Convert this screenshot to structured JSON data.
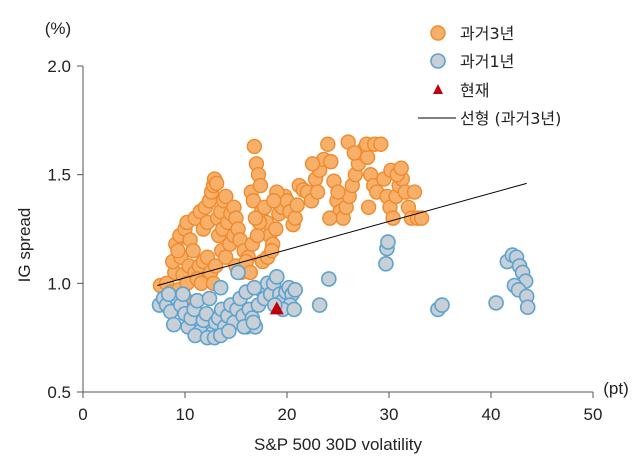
{
  "chart_data": {
    "type": "scatter",
    "xlabel": "S&P 500 30D volatility",
    "ylabel": "IG spread",
    "xunit": "(pt)",
    "yunit": "(%)",
    "xlim": [
      0,
      50
    ],
    "ylim": [
      0.5,
      2.0
    ],
    "xticks": [
      "0",
      "10",
      "20",
      "30",
      "40",
      "50"
    ],
    "yticks": [
      "0.5",
      "1.0",
      "1.5",
      "2.0"
    ],
    "legend_position": "top-right",
    "colors": {
      "past3y_fill": "#f7b069",
      "past3y_edge": "#f08a2c",
      "past1y_fill": "#c9cfd6",
      "past1y_edge": "#5ba3d0",
      "current": "#c0000b",
      "trend": "#000000",
      "axis": "#555555"
    },
    "series": [
      {
        "name": "과거3년",
        "marker": "circle",
        "points": [
          [
            7.6,
            0.99
          ],
          [
            8.2,
            1.0
          ],
          [
            8.6,
            0.96
          ],
          [
            9.0,
            1.05
          ],
          [
            9.4,
            0.97
          ],
          [
            9.8,
            1.04
          ],
          [
            10.2,
            1.0
          ],
          [
            8.4,
            0.92
          ],
          [
            9.2,
            0.93
          ],
          [
            10.0,
            0.93
          ],
          [
            8.8,
            1.1
          ],
          [
            9.6,
            1.12
          ],
          [
            10.4,
            1.08
          ],
          [
            9.1,
            1.18
          ],
          [
            9.5,
            1.22
          ],
          [
            10.0,
            1.25
          ],
          [
            10.5,
            1.2
          ],
          [
            9.3,
            1.15
          ],
          [
            10.8,
            1.15
          ],
          [
            10.2,
            1.28
          ],
          [
            11.0,
            1.05
          ],
          [
            11.4,
            1.08
          ],
          [
            11.8,
            1.1
          ],
          [
            12.2,
            1.12
          ],
          [
            11.2,
            1.02
          ],
          [
            12.5,
            1.05
          ],
          [
            11.6,
            1.0
          ],
          [
            12.8,
            1.0
          ],
          [
            13.0,
            1.08
          ],
          [
            11.0,
            1.3
          ],
          [
            11.5,
            1.33
          ],
          [
            12.0,
            1.35
          ],
          [
            12.4,
            1.38
          ],
          [
            12.6,
            1.42
          ],
          [
            12.8,
            1.45
          ],
          [
            12.9,
            1.48
          ],
          [
            13.1,
            1.46
          ],
          [
            11.8,
            1.25
          ],
          [
            12.2,
            1.28
          ],
          [
            13.2,
            1.3
          ],
          [
            13.5,
            1.33
          ],
          [
            13.8,
            1.38
          ],
          [
            14.0,
            1.4
          ],
          [
            13.3,
            1.22
          ],
          [
            13.7,
            1.25
          ],
          [
            14.2,
            1.28
          ],
          [
            14.5,
            1.32
          ],
          [
            14.8,
            1.35
          ],
          [
            15.0,
            1.3
          ],
          [
            13.6,
            1.15
          ],
          [
            14.0,
            1.12
          ],
          [
            14.4,
            1.18
          ],
          [
            14.8,
            1.22
          ],
          [
            15.2,
            1.25
          ],
          [
            15.4,
            1.2
          ],
          [
            15.8,
            1.15
          ],
          [
            16.2,
            1.12
          ],
          [
            16.6,
            1.18
          ],
          [
            15.0,
            1.08
          ],
          [
            15.5,
            1.05
          ],
          [
            16.0,
            1.1
          ],
          [
            16.4,
            1.05
          ],
          [
            16.5,
            1.42
          ],
          [
            16.8,
            1.63
          ],
          [
            17.0,
            1.55
          ],
          [
            17.2,
            1.5
          ],
          [
            17.4,
            1.45
          ],
          [
            16.7,
            1.38
          ],
          [
            17.5,
            1.33
          ],
          [
            17.8,
            1.35
          ],
          [
            18.0,
            1.28
          ],
          [
            18.3,
            1.22
          ],
          [
            18.6,
            1.18
          ],
          [
            18.9,
            1.25
          ],
          [
            19.2,
            1.32
          ],
          [
            19.5,
            1.35
          ],
          [
            19.8,
            1.4
          ],
          [
            20.0,
            1.38
          ],
          [
            20.3,
            1.33
          ],
          [
            20.6,
            1.27
          ],
          [
            20.8,
            1.3
          ],
          [
            21.0,
            1.36
          ],
          [
            17.6,
            1.1
          ],
          [
            18.1,
            1.12
          ],
          [
            18.5,
            1.15
          ],
          [
            17.1,
            1.22
          ],
          [
            17.3,
            1.28
          ],
          [
            16.9,
            1.3
          ],
          [
            19.0,
            1.42
          ],
          [
            18.7,
            1.38
          ],
          [
            21.2,
            1.45
          ],
          [
            21.6,
            1.43
          ],
          [
            22.0,
            1.42
          ],
          [
            22.4,
            1.38
          ],
          [
            22.8,
            1.48
          ],
          [
            23.2,
            1.52
          ],
          [
            23.6,
            1.57
          ],
          [
            24.0,
            1.64
          ],
          [
            24.3,
            1.56
          ],
          [
            24.6,
            1.47
          ],
          [
            24.9,
            1.38
          ],
          [
            25.2,
            1.33
          ],
          [
            25.5,
            1.3
          ],
          [
            25.8,
            1.35
          ],
          [
            26.1,
            1.4
          ],
          [
            26.4,
            1.45
          ],
          [
            26.7,
            1.5
          ],
          [
            27.0,
            1.55
          ],
          [
            27.3,
            1.6
          ],
          [
            27.6,
            1.62
          ],
          [
            27.9,
            1.58
          ],
          [
            28.2,
            1.5
          ],
          [
            28.5,
            1.45
          ],
          [
            28.8,
            1.42
          ],
          [
            26.0,
            1.65
          ],
          [
            26.6,
            1.6
          ],
          [
            27.8,
            1.64
          ],
          [
            28.6,
            1.64
          ],
          [
            29.2,
            1.64
          ],
          [
            29.5,
            1.48
          ],
          [
            29.8,
            1.4
          ],
          [
            30.1,
            1.35
          ],
          [
            30.4,
            1.3
          ],
          [
            30.7,
            1.4
          ],
          [
            31.0,
            1.45
          ],
          [
            31.3,
            1.48
          ],
          [
            31.6,
            1.42
          ],
          [
            31.9,
            1.35
          ],
          [
            32.2,
            1.3
          ],
          [
            32.5,
            1.42
          ],
          [
            32.8,
            1.3
          ],
          [
            33.2,
            1.3
          ],
          [
            30.2,
            1.52
          ],
          [
            30.8,
            1.5
          ],
          [
            31.2,
            1.53
          ],
          [
            24.2,
            1.3
          ],
          [
            25.0,
            1.42
          ],
          [
            23.0,
            1.42
          ],
          [
            22.5,
            1.55
          ],
          [
            28.0,
            1.35
          ]
        ]
      },
      {
        "name": "과거1년",
        "marker": "circle",
        "points": [
          [
            7.5,
            0.9
          ],
          [
            7.9,
            0.93
          ],
          [
            8.2,
            0.9
          ],
          [
            8.6,
            0.87
          ],
          [
            8.9,
            0.81
          ],
          [
            9.2,
            0.93
          ],
          [
            9.6,
            0.9
          ],
          [
            10.0,
            0.86
          ],
          [
            10.3,
            0.8
          ],
          [
            10.6,
            0.84
          ],
          [
            10.9,
            0.88
          ],
          [
            11.2,
            0.92
          ],
          [
            11.5,
            0.78
          ],
          [
            11.8,
            0.83
          ],
          [
            12.1,
            0.86
          ],
          [
            12.4,
            0.93
          ],
          [
            12.7,
            0.77
          ],
          [
            13.0,
            0.82
          ],
          [
            13.3,
            0.84
          ],
          [
            13.6,
            0.88
          ],
          [
            13.9,
            0.8
          ],
          [
            14.2,
            0.85
          ],
          [
            14.5,
            0.9
          ],
          [
            14.8,
            0.82
          ],
          [
            15.1,
            0.88
          ],
          [
            15.4,
            0.93
          ],
          [
            15.7,
            0.85
          ],
          [
            16.0,
            0.8
          ],
          [
            16.3,
            0.88
          ],
          [
            16.6,
            0.84
          ],
          [
            16.9,
            0.8
          ],
          [
            8.4,
            0.95
          ],
          [
            9.8,
            0.95
          ],
          [
            11.0,
            0.76
          ],
          [
            12.2,
            0.75
          ],
          [
            12.9,
            0.75
          ],
          [
            13.5,
            0.76
          ],
          [
            14.3,
            0.78
          ],
          [
            15.8,
            0.8
          ],
          [
            16.7,
            0.82
          ],
          [
            17.2,
            0.9
          ],
          [
            17.5,
            0.97
          ],
          [
            17.8,
            0.93
          ],
          [
            18.1,
            1.0
          ],
          [
            18.4,
            0.95
          ],
          [
            18.7,
            1.0
          ],
          [
            19.0,
            1.03
          ],
          [
            19.3,
            0.95
          ],
          [
            19.6,
            0.92
          ],
          [
            19.9,
            0.96
          ],
          [
            20.2,
            0.98
          ],
          [
            20.5,
            0.95
          ],
          [
            20.8,
            0.97
          ],
          [
            20.3,
            0.9
          ],
          [
            19.6,
            0.88
          ],
          [
            18.8,
            0.9
          ],
          [
            13.5,
            0.98
          ],
          [
            16.0,
            0.96
          ],
          [
            16.8,
            0.98
          ],
          [
            15.2,
            1.05
          ],
          [
            23.2,
            0.9
          ],
          [
            24.1,
            1.02
          ],
          [
            29.8,
            1.16
          ],
          [
            29.9,
            1.19
          ],
          [
            29.7,
            1.09
          ],
          [
            34.8,
            0.88
          ],
          [
            35.2,
            0.9
          ],
          [
            40.5,
            0.91
          ],
          [
            41.6,
            1.1
          ],
          [
            42.1,
            1.13
          ],
          [
            42.5,
            1.12
          ],
          [
            42.8,
            1.08
          ],
          [
            43.1,
            1.05
          ],
          [
            43.4,
            1.01
          ],
          [
            42.3,
            0.99
          ],
          [
            42.7,
            0.97
          ],
          [
            43.5,
            0.94
          ],
          [
            43.6,
            0.89
          ],
          [
            20.7,
            0.88
          ]
        ]
      },
      {
        "name": "현재",
        "marker": "triangle",
        "points": [
          [
            19.0,
            0.88
          ]
        ]
      }
    ],
    "trend_line": {
      "name": "선형 (과거3년)",
      "points": [
        [
          7.3,
          0.99
        ],
        [
          43.5,
          1.46
        ]
      ]
    }
  }
}
